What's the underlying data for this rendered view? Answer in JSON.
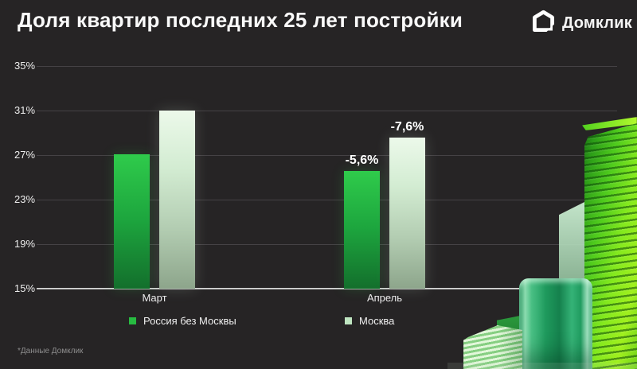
{
  "header": {
    "title": "Доля квартир последних 25 лет постройки",
    "brand": "Домклик"
  },
  "chart_data": {
    "type": "bar",
    "title": "Доля квартир последних 25 лет постройки",
    "categories": [
      "Март",
      "Апрель"
    ],
    "series": [
      {
        "name": "Россия без Москвы",
        "values": [
          27.1,
          25.6
        ]
      },
      {
        "name": "Москва",
        "values": [
          31.0,
          28.6
        ]
      }
    ],
    "annotations": [
      {
        "group_index": 1,
        "series_index": 0,
        "label": "-5,6%"
      },
      {
        "group_index": 1,
        "series_index": 1,
        "label": "-7,6%"
      }
    ],
    "xlabel": "",
    "ylabel": "",
    "ylim": [
      15,
      35
    ],
    "yticks": [
      15,
      19,
      23,
      27,
      31,
      35
    ],
    "ytick_labels": [
      "15%",
      "19%",
      "23%",
      "27%",
      "31%",
      "35%"
    ],
    "grid": true,
    "legend_position": "bottom"
  },
  "legend": {
    "items": [
      {
        "label": "Россия без Москвы",
        "color": "#27bb41"
      },
      {
        "label": "Москва",
        "color": "#bfe5c1"
      }
    ]
  },
  "colors": {
    "background": "#262425",
    "gridline": "#454245",
    "baseline": "#e0e0e0",
    "russia_bar_top": "#2fcb4b",
    "russia_bar_mid": "#1da63e",
    "russia_bar_bottom": "#136f2c",
    "moscow_bar_top": "#ecf9ea",
    "moscow_bar_upper": "#d3ecd2",
    "moscow_bar_lower": "#b3cdb2",
    "moscow_bar_bottom": "#8da58b",
    "accent_green": "#21a038"
  },
  "footer": {
    "note": "*Данные Домклик"
  }
}
